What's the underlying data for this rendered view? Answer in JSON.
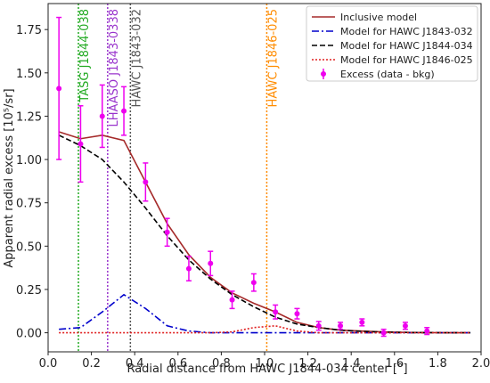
{
  "chart_data": {
    "type": "line",
    "x_label": "Radial distance from HAWC J1844-034 center [°]",
    "y_label": "Apparent radial excess [10⁵/sr]",
    "xlim": [
      0,
      2.0
    ],
    "ylim": [
      -0.11,
      1.9
    ],
    "xticks": [
      {
        "value": 0,
        "label": "0.0"
      },
      0.2,
      0.4,
      0.6,
      0.8,
      {
        "value": 1,
        "label": "1.0"
      },
      1.2,
      1.4,
      1.6,
      1.8,
      {
        "value": 2,
        "label": "2.0"
      }
    ],
    "yticks": [
      {
        "value": 0,
        "label": "0.00"
      },
      0.25,
      {
        "value": 0.5,
        "label": "0.50"
      },
      0.75,
      {
        "value": 1,
        "label": "1.00"
      },
      1.25,
      {
        "value": 1.5,
        "label": "1.50"
      },
      1.75
    ],
    "legend": "upper right",
    "series": [
      {
        "name": "Inclusive model",
        "type": "line",
        "style": "solid",
        "color": "#a52a2a",
        "x": [
          0.05,
          0.15,
          0.25,
          0.35,
          0.45,
          0.55,
          0.65,
          0.75,
          0.85,
          0.95,
          1.05,
          1.15,
          1.25,
          1.35,
          1.45,
          1.55,
          1.65,
          1.75,
          1.85,
          1.95
        ],
        "values": [
          1.16,
          1.12,
          1.14,
          1.11,
          0.87,
          0.63,
          0.45,
          0.32,
          0.23,
          0.17,
          0.12,
          0.06,
          0.03,
          0.015,
          0.01,
          0.005,
          0.002,
          0.001,
          0,
          0
        ]
      },
      {
        "name": "Model for HAWC J1843-032",
        "type": "line",
        "style": "dashdot",
        "color": "#0000cc",
        "x": [
          0.05,
          0.15,
          0.25,
          0.35,
          0.45,
          0.55,
          0.65,
          0.75,
          0.85,
          0.95,
          1.05,
          1.15,
          1.25,
          1.35,
          1.45,
          1.55,
          1.65,
          1.75,
          1.85,
          1.95
        ],
        "values": [
          0.02,
          0.03,
          0.12,
          0.22,
          0.14,
          0.04,
          0.01,
          0,
          0,
          0,
          0,
          0,
          0,
          0,
          0,
          0,
          0,
          0,
          0,
          0
        ]
      },
      {
        "name": "Model for HAWC J1844-034",
        "type": "line",
        "style": "dashed",
        "color": "#000000",
        "x": [
          0.05,
          0.15,
          0.25,
          0.35,
          0.45,
          0.55,
          0.65,
          0.75,
          0.85,
          0.95,
          1.05,
          1.15,
          1.25,
          1.35,
          1.45,
          1.55,
          1.65,
          1.75,
          1.85,
          1.95
        ],
        "values": [
          1.14,
          1.08,
          1.0,
          0.87,
          0.72,
          0.56,
          0.42,
          0.31,
          0.22,
          0.15,
          0.09,
          0.05,
          0.03,
          0.015,
          0.008,
          0.004,
          0.002,
          0.001,
          0,
          0
        ]
      },
      {
        "name": "Model for HAWC J1846-025",
        "type": "line",
        "style": "dotted",
        "color": "#e02020",
        "x": [
          0.05,
          0.15,
          0.25,
          0.35,
          0.45,
          0.55,
          0.65,
          0.75,
          0.85,
          0.95,
          1.05,
          1.15,
          1.25,
          1.35,
          1.45,
          1.55,
          1.65,
          1.75,
          1.85,
          1.95
        ],
        "values": [
          0,
          0,
          0,
          0,
          0,
          0,
          0,
          0,
          0.005,
          0.03,
          0.04,
          0.01,
          0,
          0,
          0,
          0,
          0,
          0,
          0,
          0
        ]
      },
      {
        "name": "Excess (data - bkg)",
        "type": "errorbar",
        "color": "#ee00ee",
        "x": [
          0.05,
          0.15,
          0.25,
          0.35,
          0.45,
          0.55,
          0.65,
          0.75,
          0.85,
          0.95,
          1.05,
          1.15,
          1.25,
          1.35,
          1.45,
          1.55,
          1.65,
          1.75
        ],
        "values": [
          1.41,
          1.09,
          1.25,
          1.28,
          0.87,
          0.58,
          0.37,
          0.4,
          0.19,
          0.29,
          0.12,
          0.11,
          0.04,
          0.04,
          0.06,
          0.0,
          0.04,
          0.01
        ],
        "errors": [
          0.41,
          0.22,
          0.18,
          0.14,
          0.11,
          0.08,
          0.07,
          0.07,
          0.05,
          0.05,
          0.04,
          0.03,
          0.025,
          0.02,
          0.02,
          0.02,
          0.02,
          0.02
        ]
      }
    ],
    "vlines": [
      {
        "x": 0.14,
        "label": "TASG J1844-038",
        "color": "#22aa22"
      },
      {
        "x": 0.275,
        "label": "LHAASO J1843-0338",
        "color": "#9933cc"
      },
      {
        "x": 0.38,
        "label": "HAWC J1843-032",
        "color": "#555555"
      },
      {
        "x": 1.01,
        "label": "HAWC J1846-025",
        "color": "#ff8c00"
      }
    ]
  }
}
